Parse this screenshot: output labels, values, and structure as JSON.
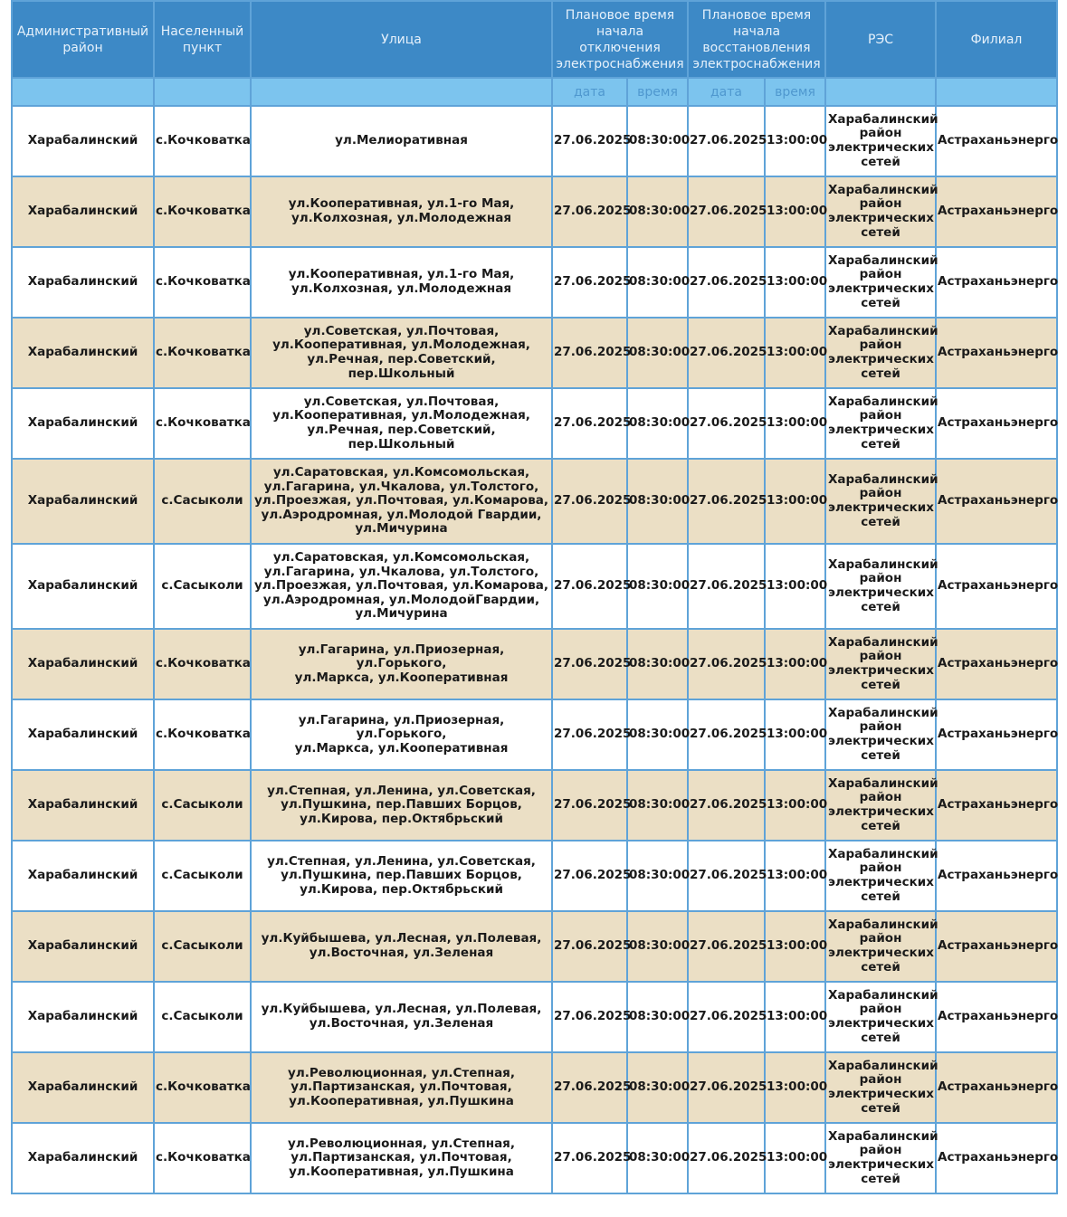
{
  "header": {
    "district": "Административный район",
    "locality": "Населенный пункт",
    "street": "Улица",
    "off_time": "Плановое время начала отключения электроснабжения",
    "on_time": "Плановое время начала восстановления электроснабжения",
    "res": "РЭС",
    "branch": "Филиал",
    "date": "дата",
    "time": "время"
  },
  "colors": {
    "header": "#3d89c6",
    "subheader": "#7cc4ee",
    "alt_row": "#ebdfc5"
  },
  "rows": [
    {
      "district": "Харабалинский",
      "locality": "с.Кочковатка",
      "street": "ул.Мелиоративная",
      "off_date": "27.06.2025",
      "off_time": "08:30:00",
      "on_date": "27.06.2025",
      "on_time": "13:00:00",
      "res": "Харабалинский район электрических сетей",
      "branch": "Астраханьэнерго"
    },
    {
      "district": "Харабалинский",
      "locality": "с.Кочковатка",
      "street": "ул.Кооперативная, ул.1-го Мая,\nул.Колхозная, ул.Молодежная",
      "off_date": "27.06.2025",
      "off_time": "08:30:00",
      "on_date": "27.06.2025",
      "on_time": "13:00:00",
      "res": "Харабалинский район электрических сетей",
      "branch": "Астраханьэнерго"
    },
    {
      "district": "Харабалинский",
      "locality": "с.Кочковатка",
      "street": "ул.Кооперативная, ул.1-го Мая,\nул.Колхозная, ул.Молодежная",
      "off_date": "27.06.2025",
      "off_time": "08:30:00",
      "on_date": "27.06.2025",
      "on_time": "13:00:00",
      "res": "Харабалинский район электрических сетей",
      "branch": "Астраханьэнерго"
    },
    {
      "district": "Харабалинский",
      "locality": "с.Кочковатка",
      "street": "ул.Советская, ул.Почтовая,\nул.Кооперативная, ул.Молодежная,\nул.Речная, пер.Советский, пер.Школьный",
      "off_date": "27.06.2025",
      "off_time": "08:30:00",
      "on_date": "27.06.2025",
      "on_time": "13:00:00",
      "res": "Харабалинский район электрических сетей",
      "branch": "Астраханьэнерго"
    },
    {
      "district": "Харабалинский",
      "locality": "с.Кочковатка",
      "street": "ул.Советская, ул.Почтовая,\nул.Кооперативная, ул.Молодежная,\nул.Речная, пер.Советский, пер.Школьный",
      "off_date": "27.06.2025",
      "off_time": "08:30:00",
      "on_date": "27.06.2025",
      "on_time": "13:00:00",
      "res": "Харабалинский район электрических сетей",
      "branch": "Астраханьэнерго"
    },
    {
      "district": "Харабалинский",
      "locality": "с.Сасыколи",
      "street": "ул.Саратовская, ул.Комсомольская,\nул.Гагарина, ул.Чкалова, ул.Толстого,\nул.Проезжая, ул.Почтовая, ул.Комарова,\nул.Аэродромная, ул.Молодой Гвардии,\nул.Мичурина",
      "off_date": "27.06.2025",
      "off_time": "08:30:00",
      "on_date": "27.06.2025",
      "on_time": "13:00:00",
      "res": "Харабалинский район электрических сетей",
      "branch": "Астраханьэнерго"
    },
    {
      "district": "Харабалинский",
      "locality": "с.Сасыколи",
      "street": "ул.Саратовская, ул.Комсомольская,\nул.Гагарина, ул.Чкалова, ул.Толстого,\nул.Проезжая, ул.Почтовая, ул.Комарова,\nул.Аэродромная, ул.МолодойГвардии,\nул.Мичурина",
      "off_date": "27.06.2025",
      "off_time": "08:30:00",
      "on_date": "27.06.2025",
      "on_time": "13:00:00",
      "res": "Харабалинский район электрических сетей",
      "branch": "Астраханьэнерго"
    },
    {
      "district": "Харабалинский",
      "locality": "с.Кочковатка",
      "street": "ул.Гагарина, ул.Приозерная, ул.Горького,\nул.Маркса, ул.Кооперативная",
      "off_date": "27.06.2025",
      "off_time": "08:30:00",
      "on_date": "27.06.2025",
      "on_time": "13:00:00",
      "res": "Харабалинский район электрических сетей",
      "branch": "Астраханьэнерго"
    },
    {
      "district": "Харабалинский",
      "locality": "с.Кочковатка",
      "street": "ул.Гагарина, ул.Приозерная, ул.Горького,\nул.Маркса, ул.Кооперативная",
      "off_date": "27.06.2025",
      "off_time": "08:30:00",
      "on_date": "27.06.2025",
      "on_time": "13:00:00",
      "res": "Харабалинский район электрических сетей",
      "branch": "Астраханьэнерго"
    },
    {
      "district": "Харабалинский",
      "locality": "с.Сасыколи",
      "street": "ул.Степная, ул.Ленина, ул.Советская,\nул.Пушкина, пер.Павших Борцов,\nул.Кирова, пер.Октябрьский",
      "off_date": "27.06.2025",
      "off_time": "08:30:00",
      "on_date": "27.06.2025",
      "on_time": "13:00:00",
      "res": "Харабалинский район электрических сетей",
      "branch": "Астраханьэнерго"
    },
    {
      "district": "Харабалинский",
      "locality": "с.Сасыколи",
      "street": "ул.Степная, ул.Ленина, ул.Советская,\nул.Пушкина, пер.Павших Борцов,\nул.Кирова, пер.Октябрьский",
      "off_date": "27.06.2025",
      "off_time": "08:30:00",
      "on_date": "27.06.2025",
      "on_time": "13:00:00",
      "res": "Харабалинский район электрических сетей",
      "branch": "Астраханьэнерго"
    },
    {
      "district": "Харабалинский",
      "locality": "с.Сасыколи",
      "street": "ул.Куйбышева, ул.Лесная, ул.Полевая,\nул.Восточная, ул.Зеленая",
      "off_date": "27.06.2025",
      "off_time": "08:30:00",
      "on_date": "27.06.2025",
      "on_time": "13:00:00",
      "res": "Харабалинский район электрических сетей",
      "branch": "Астраханьэнерго"
    },
    {
      "district": "Харабалинский",
      "locality": "с.Сасыколи",
      "street": "ул.Куйбышева, ул.Лесная, ул.Полевая,\nул.Восточная, ул.Зеленая",
      "off_date": "27.06.2025",
      "off_time": "08:30:00",
      "on_date": "27.06.2025",
      "on_time": "13:00:00",
      "res": "Харабалинский район электрических сетей",
      "branch": "Астраханьэнерго"
    },
    {
      "district": "Харабалинский",
      "locality": "с.Кочковатка",
      "street": "ул.Революционная, ул.Степная,\nул.Партизанская, ул.Почтовая,\nул.Кооперативная, ул.Пушкина",
      "off_date": "27.06.2025",
      "off_time": "08:30:00",
      "on_date": "27.06.2025",
      "on_time": "13:00:00",
      "res": "Харабалинский район электрических сетей",
      "branch": "Астраханьэнерго"
    },
    {
      "district": "Харабалинский",
      "locality": "с.Кочковатка",
      "street": "ул.Революционная, ул.Степная,\nул.Партизанская, ул.Почтовая,\nул.Кооперативная, ул.Пушкина",
      "off_date": "27.06.2025",
      "off_time": "08:30:00",
      "on_date": "27.06.2025",
      "on_time": "13:00:00",
      "res": "Харабалинский район электрических сетей",
      "branch": "Астраханьэнерго"
    }
  ]
}
